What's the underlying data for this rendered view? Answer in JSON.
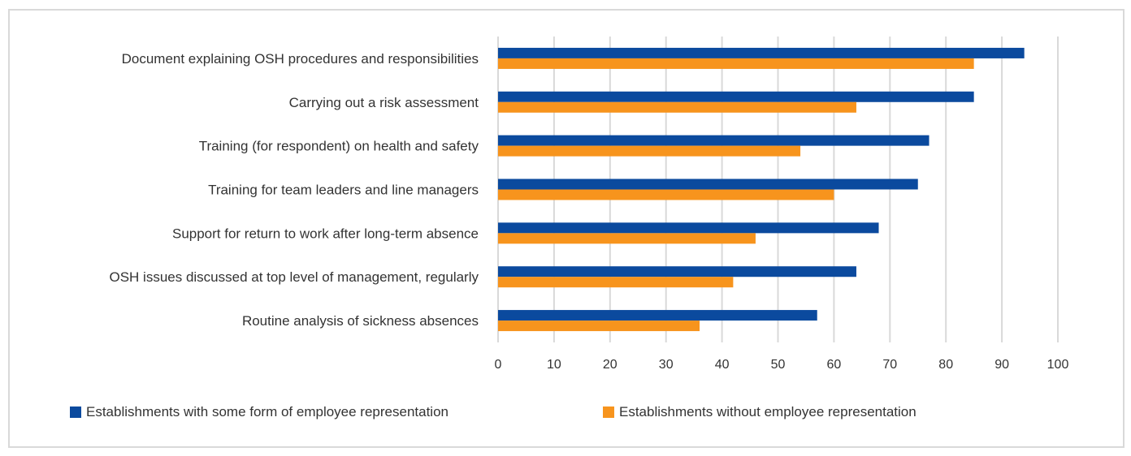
{
  "chart_data": {
    "type": "bar",
    "orientation": "horizontal",
    "categories": [
      "Document explaining OSH procedures and responsibilities",
      "Carrying out a risk assessment",
      "Training (for respondent) on health and safety",
      "Training for team leaders and line managers",
      "Support for return to work after long-term absence",
      "OSH issues discussed at top level of management, regularly",
      "Routine analysis of sickness absences"
    ],
    "series": [
      {
        "name": "Establishments with some form of employee representation",
        "color": "#0b4a9e",
        "values": [
          94,
          85,
          77,
          75,
          68,
          64,
          57
        ]
      },
      {
        "name": "Establishments without employee representation",
        "color": "#f7941d",
        "values": [
          85,
          64,
          54,
          60,
          46,
          42,
          36
        ]
      }
    ],
    "xlim": [
      0,
      100
    ],
    "xticks": [
      "0",
      "10",
      "20",
      "30",
      "40",
      "50",
      "60",
      "70",
      "80",
      "90",
      "100"
    ],
    "grid": true,
    "legend_position": "bottom",
    "title": "",
    "xlabel": "",
    "ylabel": ""
  }
}
